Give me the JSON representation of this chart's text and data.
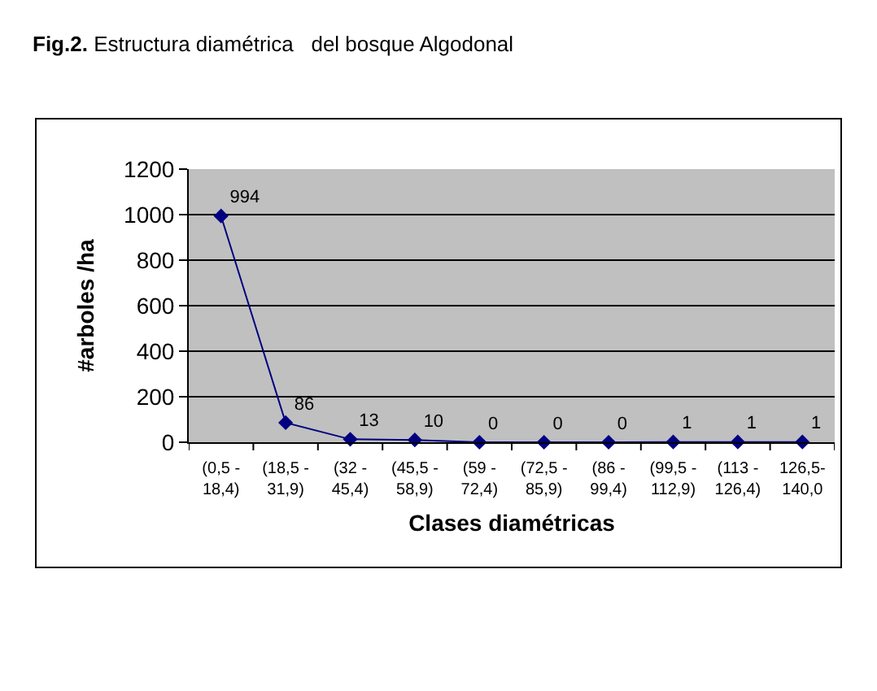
{
  "chart_data": {
    "type": "line",
    "title": "Fig.2. Estructura diamétrica   del bosque Algodonal",
    "xlabel": "Clases diamétricas",
    "ylabel": "#arboles /ha",
    "categories": [
      "(0,5 - 18,4)",
      "(18,5 - 31,9)",
      "(32 - 45,4)",
      "(45,5 - 58,9)",
      "(59 - 72,4)",
      "(72,5 - 85,9)",
      "(86 - 99,4)",
      "(99,5 - 112,9)",
      "(113 - 126,4)",
      "126,5-140,0"
    ],
    "series": [
      {
        "color": "#000080",
        "values": [
          994,
          86,
          13,
          10,
          0,
          0,
          0,
          1,
          1,
          1
        ]
      }
    ],
    "ylim": [
      0,
      1200
    ],
    "yticks": [
      0,
      200,
      400,
      600,
      800,
      1000,
      1200
    ],
    "grid": "y",
    "marker": "diamond",
    "line_style": "solid",
    "data_labels": true
  }
}
